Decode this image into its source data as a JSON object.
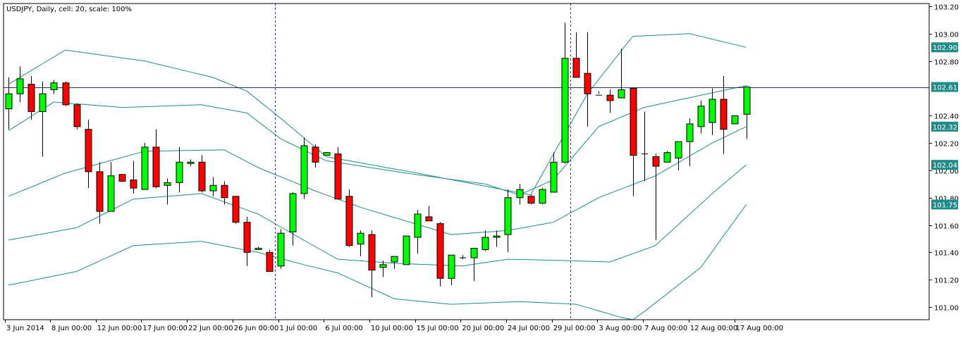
{
  "chart_title": "USDJPY, Daily, cell: 20, scale: 100%",
  "colors": {
    "background": "#ffffff",
    "frame": "#000000",
    "up_candle": "#00ff00",
    "down_candle": "#ff0000",
    "band_line": "#1f8c8c",
    "price_line": "#2f2f6f",
    "badge": "#1f8c8c"
  },
  "chart_data": {
    "type": "candlestick",
    "title": "USDJPY, Daily, cell: 20, scale: 100%",
    "x_tick_labels": [
      "3 Jun 2014",
      "8 Jun 00:00",
      "12 Jun 00:00",
      "17 Jun 00:00",
      "22 Jun 00:00",
      "26 Jun 00:00",
      "1 Jul 00:00",
      "6 Jul 00:00",
      "10 Jul 00:00",
      "15 Jul 00:00",
      "20 Jul 00:00",
      "24 Jul 00:00",
      "29 Jul 00:00",
      "3 Aug 00:00",
      "7 Aug 00:00",
      "12 Aug 00:00",
      "17 Aug 00:00"
    ],
    "y_tick_labels": [
      "103.20",
      "103.00",
      "102.80",
      "102.40",
      "102.20",
      "102.00",
      "101.80",
      "101.60",
      "101.40",
      "101.20",
      "101.00"
    ],
    "y_ticks": [
      103.2,
      103.0,
      102.8,
      102.4,
      102.2,
      102.0,
      101.8,
      101.6,
      101.4,
      101.2,
      101.0
    ],
    "ylim": [
      100.95,
      103.22
    ],
    "current_price": 102.61,
    "price_badges": [
      {
        "label": "102.90",
        "value": 102.9
      },
      {
        "label": "102.61",
        "value": 102.61
      },
      {
        "label": "102.32",
        "value": 102.32
      },
      {
        "label": "102.04",
        "value": 102.04
      },
      {
        "label": "101.75",
        "value": 101.75
      }
    ],
    "ohlc": [
      [
        102.45,
        102.68,
        102.3,
        102.56
      ],
      [
        102.56,
        102.76,
        102.5,
        102.67
      ],
      [
        102.63,
        102.69,
        102.37,
        102.43
      ],
      [
        102.43,
        102.65,
        102.1,
        102.56
      ],
      [
        102.59,
        102.66,
        102.56,
        102.64
      ],
      [
        102.64,
        102.65,
        102.47,
        102.48
      ],
      [
        102.48,
        102.49,
        102.3,
        102.32
      ],
      [
        102.3,
        102.37,
        101.87,
        101.99
      ],
      [
        101.99,
        102.06,
        101.61,
        101.7
      ],
      [
        101.7,
        102.06,
        101.7,
        101.96
      ],
      [
        101.97,
        101.97,
        101.93,
        101.92
      ],
      [
        101.93,
        102.07,
        101.83,
        101.87
      ],
      [
        101.86,
        102.2,
        101.86,
        102.17
      ],
      [
        102.17,
        102.3,
        101.87,
        101.88
      ],
      [
        101.89,
        101.94,
        101.75,
        101.91
      ],
      [
        101.91,
        102.17,
        101.84,
        102.06
      ],
      [
        102.05,
        102.08,
        102.03,
        102.06
      ],
      [
        102.06,
        102.11,
        101.84,
        101.85
      ],
      [
        101.85,
        101.95,
        101.81,
        101.89
      ],
      [
        101.89,
        101.92,
        101.75,
        101.8
      ],
      [
        101.81,
        101.81,
        101.61,
        101.62
      ],
      [
        101.62,
        101.66,
        101.3,
        101.4
      ],
      [
        101.42,
        101.44,
        101.42,
        101.43
      ],
      [
        101.4,
        101.42,
        101.26,
        101.26
      ],
      [
        101.3,
        101.57,
        101.28,
        101.54
      ],
      [
        101.55,
        101.84,
        101.45,
        101.83
      ],
      [
        101.83,
        102.24,
        101.79,
        102.18
      ],
      [
        102.17,
        102.19,
        102.02,
        102.06
      ],
      [
        102.11,
        102.13,
        102.11,
        102.13
      ],
      [
        102.12,
        102.17,
        101.79,
        101.79
      ],
      [
        101.81,
        101.86,
        101.44,
        101.45
      ],
      [
        101.46,
        101.56,
        101.37,
        101.54
      ],
      [
        101.53,
        101.56,
        101.07,
        101.27
      ],
      [
        101.29,
        101.34,
        101.22,
        101.31
      ],
      [
        101.33,
        101.37,
        101.28,
        101.37
      ],
      [
        101.31,
        101.52,
        101.31,
        101.52
      ],
      [
        101.51,
        101.71,
        101.39,
        101.68
      ],
      [
        101.66,
        101.74,
        101.63,
        101.63
      ],
      [
        101.61,
        101.62,
        101.15,
        101.21
      ],
      [
        101.21,
        101.37,
        101.16,
        101.38
      ],
      [
        101.36,
        101.38,
        101.35,
        101.36
      ],
      [
        101.36,
        101.43,
        101.19,
        101.43
      ],
      [
        101.42,
        101.56,
        101.41,
        101.51
      ],
      [
        101.51,
        101.56,
        101.44,
        101.52
      ],
      [
        101.53,
        101.86,
        101.4,
        101.8
      ],
      [
        101.8,
        101.9,
        101.75,
        101.86
      ],
      [
        101.81,
        101.82,
        101.75,
        101.76
      ],
      [
        101.76,
        101.87,
        101.75,
        101.86
      ],
      [
        101.84,
        102.13,
        101.84,
        102.06
      ],
      [
        102.06,
        103.08,
        102.05,
        102.82
      ],
      [
        102.82,
        103.01,
        102.69,
        102.68
      ],
      [
        102.71,
        103.01,
        102.32,
        102.56
      ],
      [
        102.55,
        102.58,
        102.56,
        102.55
      ],
      [
        102.55,
        102.59,
        102.42,
        102.51
      ],
      [
        102.53,
        102.89,
        102.53,
        102.59
      ],
      [
        102.6,
        102.59,
        101.81,
        102.11
      ],
      [
        102.12,
        102.43,
        101.92,
        102.12
      ],
      [
        102.1,
        102.12,
        101.49,
        102.03
      ],
      [
        102.06,
        102.14,
        102.06,
        102.13
      ],
      [
        102.09,
        102.2,
        102.0,
        102.21
      ],
      [
        102.21,
        102.38,
        102.03,
        102.34
      ],
      [
        102.32,
        102.51,
        102.27,
        102.47
      ],
      [
        102.35,
        102.6,
        102.26,
        102.52
      ],
      [
        102.52,
        102.69,
        102.12,
        102.3
      ],
      [
        102.34,
        102.4,
        102.34,
        102.4
      ],
      [
        102.41,
        102.62,
        102.23,
        102.61
      ]
    ],
    "bands": [
      {
        "name": "upper-outer",
        "values": [
          [
            0,
            102.63
          ],
          [
            5,
            102.88
          ],
          [
            12,
            102.8
          ],
          [
            18,
            102.68
          ],
          [
            21,
            102.58
          ],
          [
            24,
            102.38
          ],
          [
            28,
            102.1
          ],
          [
            36,
            101.98
          ],
          [
            46,
            101.82
          ],
          [
            51,
            102.56
          ],
          [
            55,
            102.98
          ],
          [
            60,
            103.0
          ],
          [
            65,
            102.9
          ]
        ]
      },
      {
        "name": "upper-inner",
        "values": [
          [
            0,
            102.29
          ],
          [
            4,
            102.5
          ],
          [
            10,
            102.46
          ],
          [
            17,
            102.48
          ],
          [
            21,
            102.42
          ],
          [
            24,
            102.23
          ],
          [
            28,
            102.07
          ],
          [
            35,
            101.98
          ],
          [
            42,
            101.9
          ],
          [
            45,
            101.82
          ],
          [
            48,
            101.93
          ],
          [
            52,
            102.32
          ],
          [
            56,
            102.46
          ],
          [
            61,
            102.55
          ],
          [
            65,
            102.62
          ]
        ]
      },
      {
        "name": "middle",
        "values": [
          [
            0,
            101.81
          ],
          [
            5,
            101.98
          ],
          [
            12,
            102.14
          ],
          [
            19,
            102.15
          ],
          [
            22,
            102.02
          ],
          [
            27,
            101.85
          ],
          [
            31,
            101.73
          ],
          [
            39,
            101.53
          ],
          [
            44,
            101.56
          ],
          [
            48,
            101.62
          ],
          [
            52,
            101.8
          ],
          [
            57,
            101.96
          ],
          [
            62,
            102.2
          ],
          [
            65,
            102.32
          ]
        ]
      },
      {
        "name": "lower-inner",
        "values": [
          [
            0,
            101.49
          ],
          [
            6,
            101.58
          ],
          [
            11,
            101.79
          ],
          [
            17,
            101.83
          ],
          [
            22,
            101.68
          ],
          [
            26,
            101.49
          ],
          [
            29,
            101.35
          ],
          [
            34,
            101.32
          ],
          [
            40,
            101.3
          ],
          [
            44,
            101.35
          ],
          [
            49,
            101.34
          ],
          [
            53,
            101.33
          ],
          [
            57,
            101.45
          ],
          [
            62,
            101.83
          ],
          [
            65,
            102.04
          ]
        ]
      },
      {
        "name": "lower-outer",
        "values": [
          [
            0,
            101.16
          ],
          [
            6,
            101.26
          ],
          [
            11,
            101.45
          ],
          [
            17,
            101.48
          ],
          [
            22,
            101.4
          ],
          [
            26,
            101.31
          ],
          [
            29,
            101.25
          ],
          [
            34,
            101.06
          ],
          [
            39,
            101.02
          ],
          [
            45,
            101.04
          ],
          [
            50,
            101.02
          ],
          [
            55,
            100.9
          ],
          [
            61,
            101.29
          ],
          [
            65,
            101.75
          ]
        ]
      }
    ],
    "period_separators_at": [
      24,
      50
    ]
  }
}
